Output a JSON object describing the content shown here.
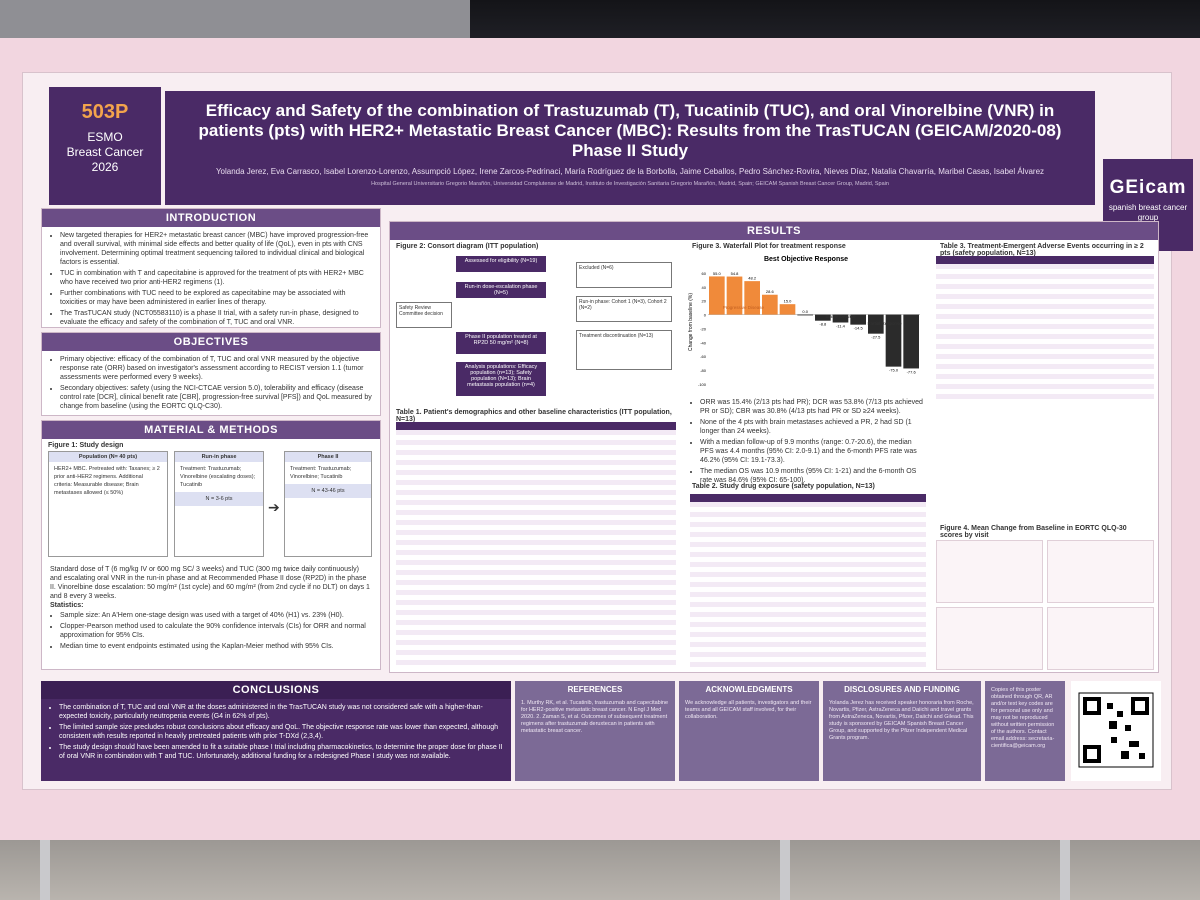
{
  "header": {
    "code": "503P",
    "conference_line1": "ESMO",
    "conference_line2": "Breast Cancer",
    "conference_line3": "2026",
    "title": "Efficacy and Safety of the combination of Trastuzumab (T), Tucatinib (TUC), and oral Vinorelbine (VNR) in patients (pts) with HER2+ Metastatic Breast Cancer (MBC): Results from the TrasTUCAN (GEICAM/2020-08) Phase II Study",
    "authors": "Yolanda Jerez, Eva Carrasco, Isabel Lorenzo-Lorenzo, Assumpció López, Irene Zarcos-Pedrinaci, María Rodríguez de la Borbolla, Jaime Ceballos, Pedro Sánchez-Rovira, Nieves Díaz, Natalia Chavarría, Maribel Casas, Isabel Álvarez",
    "affiliations": "Hospital General Universitario Gregorio Marañón, Universidad Complutense de Madrid, Instituto de Investigación Sanitaria Gregorio Marañón, Madrid, Spain; GEICAM Spanish Breast Cancer Group, Madrid, Spain",
    "logo_main": "GEicam",
    "logo_sub": "spanish breast cancer group"
  },
  "sections": {
    "introduction": {
      "title": "INTRODUCTION",
      "bullets": [
        "New targeted therapies for HER2+ metastatic breast cancer (MBC) have improved progression-free and overall survival, with minimal side effects and better quality of life (QoL), even in pts with CNS involvement. Determining optimal treatment sequencing tailored to individual clinical and biological factors is essential.",
        "TUC in combination with T and capecitabine is approved for the treatment of pts with HER2+ MBC who have received two prior anti-HER2 regimens (1).",
        "Further combinations with TUC need to be explored as capecitabine may be associated with toxicities or may have been administered in earlier lines of therapy.",
        "The TrasTUCAN study (NCT05583110) is a phase II trial, with a safety run-in phase, designed to evaluate the efficacy and safety of the combination of T, TUC and oral VNR."
      ]
    },
    "objectives": {
      "title": "OBJECTIVES",
      "primary": "Primary objective: efficacy of the combination of T, TUC and oral VNR measured by the objective response rate (ORR) based on investigator's assessment according to RECIST version 1.1 (tumor assessments were performed every 9 weeks).",
      "secondary": "Secondary objectives: safety (using the NCI-CTCAE version 5.0), tolerability and efficacy (disease control rate [DCR], clinical benefit rate [CBR], progression-free survival [PFS]) and QoL measured by change from baseline (using the EORTC QLQ-C30)."
    },
    "methods": {
      "title": "MATERIAL & METHODS",
      "figure_title": "Figure 1: Study design",
      "population_head": "Population (N= 40 pts)",
      "population_text": "HER2+ MBC. Pretreated with: Taxanes; ≥ 2 prior anti-HER2 regimens. Additional criteria: Measurable disease; Brain metastases allowed (≤ 50%)",
      "runin_head": "Run-in phase",
      "runin_text": "Treatment: Trastuzumab; Vinorelbine (escalating doses); Tucatinib",
      "runin_n": "N = 3-6 pts",
      "phase2_head": "Phase II",
      "phase2_text": "Treatment: Trastuzumab; Vinorelbine; Tucatinib",
      "phase2_n": "N = 43-46 pts",
      "dosing": "Standard dose of T (6 mg/kg IV or 600 mg SC/ 3 weeks) and TUC (300 mg twice daily continuously) and escalating oral VNR in the run-in phase and at Recommended Phase II dose (RP2D) in the phase II. Vinorelbine dose escalation: 50 mg/m² (1st cycle) and 60 mg/m² (from 2nd cycle if no DLT) on days 1 and 8 every 3 weeks.",
      "stats_title": "Statistics:",
      "stats": [
        "Sample size: An A'Hern one-stage design was used with a target of 40% (H1) vs. 23% (H0).",
        "Clopper-Pearson method used to calculate the 90% confidence intervals (CIs) for ORR and normal approximation for 95% CIs.",
        "Median time to event endpoints estimated using the Kaplan-Meier method with 95% CIs."
      ]
    },
    "results": {
      "title": "RESULTS",
      "fig2_title": "Figure 2: Consort diagram (ITT population)",
      "fig2_boxes": [
        "Assessed for eligibility (N=19)",
        "Run-in dose-escalation phase (N=5)",
        "Phase II population treated at RP2D 50 mg/m² (N=8)",
        "Analysis populations: Efficacy population (n=13); Safety population (N=13); Brain metastasis population (n=4)"
      ],
      "fig2_side": [
        "Excluded (N=6)",
        "Run-in phase: Cohort 1 (N=3), Cohort 2 (N=2)",
        "Treatment discontinuation (N=13)",
        "Safety Review Committee decision"
      ],
      "fig3_title": "Figure 3. Waterfall Plot for treatment response",
      "fig3_subtitle": "Best Objective Response",
      "fig3_ylabel": "Change from baseline (%)",
      "fig3_labels": [
        "Progressive Disease",
        "Stable Disease",
        "Partial Response"
      ],
      "table1_title": "Table 1. Patient's demographics and other baseline characteristics (ITT population, N=13)",
      "table2_title": "Table 2. Study drug exposure (safety population, N=13)",
      "table3_title": "Table 3. Treatment-Emergent Adverse Events occurring in ≥ 2 pts (safety population, N=13)",
      "fig4_title": "Figure 4. Mean Change from Baseline in EORTC QLQ-30 scores by visit",
      "efficacy_bullets": [
        "ORR was 15.4% (2/13 pts had PR); DCR was 53.8% (7/13 pts achieved PR or SD); CBR was 30.8% (4/13 pts had PR or SD ≥24 weeks).",
        "None of the 4 pts with brain metastases achieved a PR, 2 had SD (1 longer than 24 weeks).",
        "With a median follow-up of 9.9 months (range: 0.7-20.6), the median PFS was 4.4 months (95% CI: 2.0-9.1) and the 6-month PFS rate was 46.2% (95% CI: 19.1-73.3).",
        "The median OS was 10.9 months (95% CI: 1-21) and the 6-month OS rate was 84.6% (95% CI: 65-100)."
      ]
    },
    "conclusions": {
      "title": "CONCLUSIONS",
      "bullets": [
        "The combination of T, TUC and oral VNR at the doses administered in the TrasTUCAN study was not considered safe with a higher-than-expected toxicity, particularly neutropenia events (G4 in 62% of pts).",
        "The limited sample size precludes robust conclusions about efficacy and QoL. The objective response rate was lower than expected, although consistent with results reported in heavily pretreated patients with prior T-DXd (2,3,4).",
        "The study design should have been amended to fit a suitable phase I trial including pharmacokinetics, to determine the proper dose for phase II of oral VNR in combination with T and TUC. Unfortunately, additional funding for a redesigned Phase I study was not available."
      ]
    },
    "references": {
      "title": "REFERENCES",
      "text": "1. Murthy RK, et al. Tucatinib, trastuzumab and capecitabine for HER2-positive metastatic breast cancer. N Engl J Med 2020. 2. Zaman S, et al. Outcomes of subsequent treatment regimens after trastuzumab deruxtecan in patients with metastatic breast cancer."
    },
    "acknowledgments": {
      "title": "ACKNOWLEDGMENTS",
      "text": "We acknowledge all patients, investigators and their teams and all GEICAM staff involved, for their collaboration."
    },
    "disclosures": {
      "title": "DISCLOSURES AND FUNDING",
      "text": "Yolanda Jerez has received speaker honoraria from Roche, Novartis, Pfizer, AstraZeneca and Daiichi and travel grants from AstraZeneca, Novartis, Pfizer, Daiichi and Gilead. This study is sponsored by GEICAM Spanish Breast Cancer Group, and supported by the Pfizer Independent Medical Grants program."
    },
    "copies": {
      "text": "Copies of this poster obtained through QR, AR and/or text key codes are for personal use only and may not be reproduced without written permission of the authors. Contact email address: secretaria-cientifica@geicam.org"
    }
  },
  "colors": {
    "primary_purple": "#4a2a66",
    "accent_orange": "#f3a44c",
    "bar_orange": "#f08a3a",
    "bar_dark": "#2b2b2b"
  },
  "chart_data": {
    "type": "bar",
    "title": "Best Objective Response",
    "ylabel": "Change from baseline (%)",
    "values": [
      55.0,
      54.8,
      48.2,
      28.6,
      15.0,
      0.0,
      -8.8,
      -11.4,
      -14.5,
      -27.5,
      -75.0,
      -77.6
    ],
    "groups": [
      "Progressive Disease",
      "Progressive Disease",
      "Progressive Disease",
      "Progressive Disease",
      "Progressive Disease",
      "Stable Disease",
      "Stable Disease",
      "Stable Disease",
      "Stable Disease",
      "Stable Disease",
      "Partial Response",
      "Partial Response"
    ],
    "ylim": [
      -100,
      70
    ]
  }
}
